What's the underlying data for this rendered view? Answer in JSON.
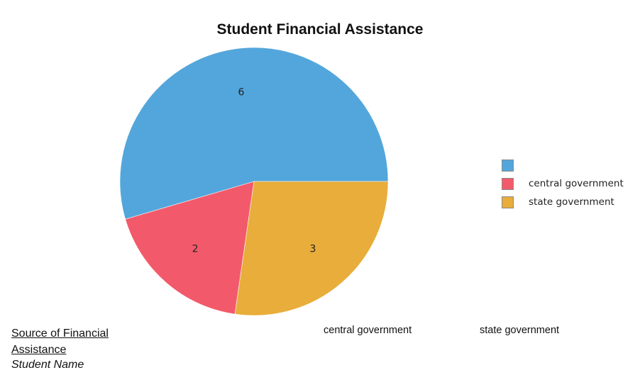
{
  "chart_data": {
    "type": "pie",
    "title": "Student Financial Assistance",
    "slices": [
      {
        "label": "",
        "value": 6,
        "color": "#53a6db"
      },
      {
        "label": "central government",
        "value": 2,
        "color": "#f25a6b"
      },
      {
        "label": "state government",
        "value": 3,
        "color": "#e8ad3a"
      }
    ],
    "start_angle_deg": 0,
    "direction": "counterclockwise",
    "legend_position": "right"
  },
  "footer": {
    "source_label": "Source of Financial Assistance",
    "student_name": "Student Name",
    "column_headers": [
      "central government",
      "state government"
    ]
  }
}
